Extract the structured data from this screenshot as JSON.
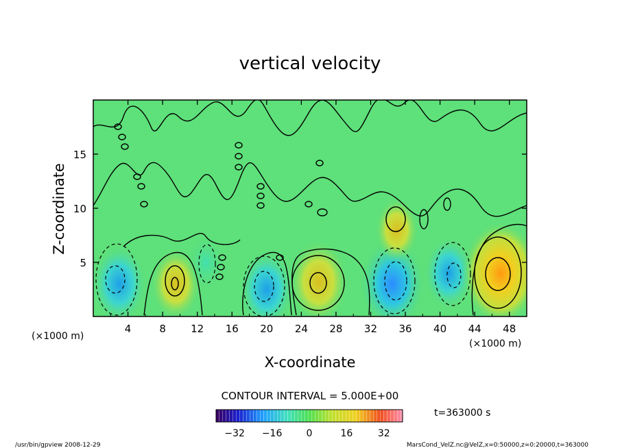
{
  "chart_data": {
    "type": "heatmap",
    "title": "vertical velocity",
    "xlabel": "X-coordinate",
    "ylabel": "Z-coordinate",
    "x_unit_left": "(×1000 m)",
    "x_unit_right": "(×1000 m)",
    "xlim": [
      0,
      50
    ],
    "ylim": [
      0,
      20
    ],
    "x_ticks": [
      4,
      8,
      12,
      16,
      20,
      24,
      28,
      32,
      36,
      40,
      44,
      48
    ],
    "y_ticks": [
      5,
      10,
      15
    ],
    "contour_interval_label": "CONTOUR INTERVAL = 5.000E+00",
    "time_label": "t=363000 s",
    "colorbar": {
      "min": -40,
      "max": 40,
      "tick_values": [
        -32,
        -16,
        0,
        16,
        32
      ]
    },
    "features": [
      {
        "x": 3,
        "z": 3,
        "w": -15,
        "kind": "downdraft"
      },
      {
        "x": 9.5,
        "z": 3,
        "w": 12,
        "kind": "updraft"
      },
      {
        "x": 13,
        "z": 5,
        "w": -5,
        "kind": "downdraft"
      },
      {
        "x": 20,
        "z": 2.5,
        "w": -15,
        "kind": "downdraft"
      },
      {
        "x": 26,
        "z": 3.2,
        "w": 18,
        "kind": "updraft"
      },
      {
        "x": 34.5,
        "z": 3,
        "w": -22,
        "kind": "downdraft"
      },
      {
        "x": 41,
        "z": 4,
        "w": -12,
        "kind": "downdraft"
      },
      {
        "x": 47,
        "z": 4,
        "w": 28,
        "kind": "updraft"
      },
      {
        "x": 35,
        "z": 8,
        "w": 8,
        "kind": "updraft"
      }
    ],
    "footer_left": "/usr/bin/gpview   2008-12-29",
    "footer_right": "MarsCond_VelZ.nc@VelZ,x=0:50000,z=0:20000,t=363000"
  }
}
